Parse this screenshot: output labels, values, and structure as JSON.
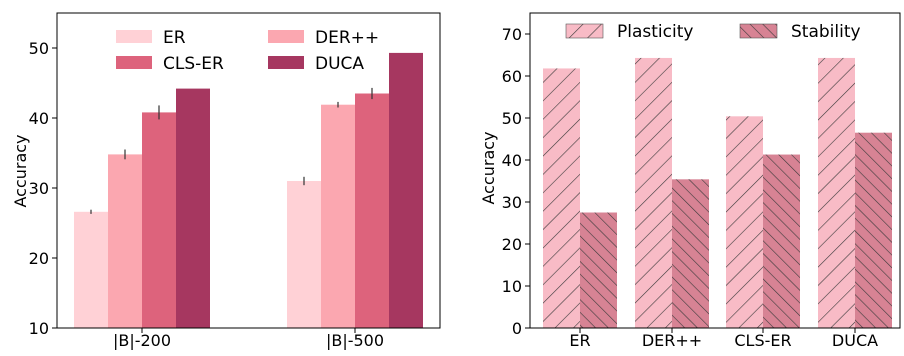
{
  "chart_data": [
    {
      "type": "bar",
      "categories": [
        "|B|-200",
        "|B|-500"
      ],
      "series": [
        {
          "name": "ER",
          "values": [
            26.6,
            31.0
          ],
          "errors": [
            0.3,
            0.6
          ],
          "color": "#FFD1D6"
        },
        {
          "name": "DER++",
          "values": [
            34.8,
            41.9
          ],
          "errors": [
            0.7,
            0.4
          ],
          "color": "#FBA7B0"
        },
        {
          "name": "CLS-ER",
          "values": [
            40.8,
            43.5
          ],
          "errors": [
            1.0,
            0.8
          ],
          "color": "#DD637C"
        },
        {
          "name": "DUCA",
          "values": [
            44.2,
            49.3
          ],
          "errors": [
            0.0,
            0.0
          ],
          "color": "#A63760"
        }
      ],
      "ylabel": "Accuracy",
      "xlabel": "",
      "ylim": [
        10,
        55
      ],
      "yticks": [
        10,
        20,
        30,
        40,
        50
      ],
      "legend_loc": "top",
      "grid": false
    },
    {
      "type": "bar",
      "categories": [
        "ER",
        "DER++",
        "CLS-ER",
        "DUCA"
      ],
      "series": [
        {
          "name": "Plasticity",
          "values": [
            61.8,
            64.3,
            50.4,
            64.3
          ],
          "color": "#F8BBC6",
          "hatch": "//"
        },
        {
          "name": "Stability",
          "values": [
            27.5,
            35.4,
            41.3,
            46.5
          ],
          "color": "#D78394",
          "hatch": "\\\\"
        }
      ],
      "ylabel": "Accuracy",
      "xlabel": "",
      "ylim": [
        0,
        75
      ],
      "yticks": [
        0,
        10,
        20,
        30,
        40,
        50,
        60,
        70
      ],
      "legend_loc": "top",
      "grid": false
    }
  ]
}
